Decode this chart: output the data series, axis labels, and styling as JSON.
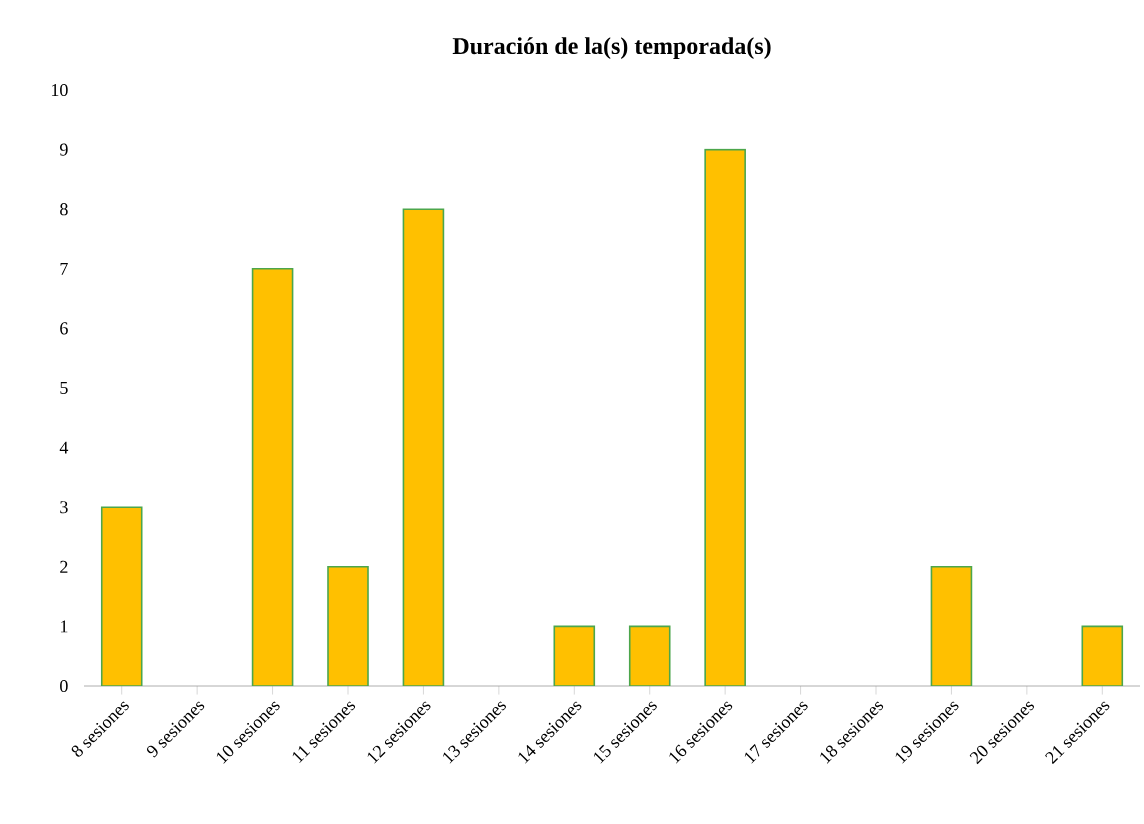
{
  "chart_data": {
    "type": "bar",
    "title": "Duración de la(s) temporada(s)",
    "categories": [
      "8 sesiones",
      "9 sesiones",
      "10 sesiones",
      "11 sesiones",
      "12 sesiones",
      "13 sesiones",
      "14 sesiones",
      "15 sesiones",
      "16 sesiones",
      "17 sesiones",
      "18 sesiones",
      "19 sesiones",
      "20 sesiones",
      "21 sesiones"
    ],
    "values": [
      3,
      0,
      7,
      2,
      8,
      0,
      1,
      1,
      9,
      0,
      0,
      2,
      0,
      1
    ],
    "color": "#ffc000",
    "ylim": [
      0,
      10
    ],
    "yticks": [
      0,
      1,
      2,
      3,
      4,
      5,
      6,
      7,
      8,
      9,
      10
    ],
    "grid": false
  }
}
